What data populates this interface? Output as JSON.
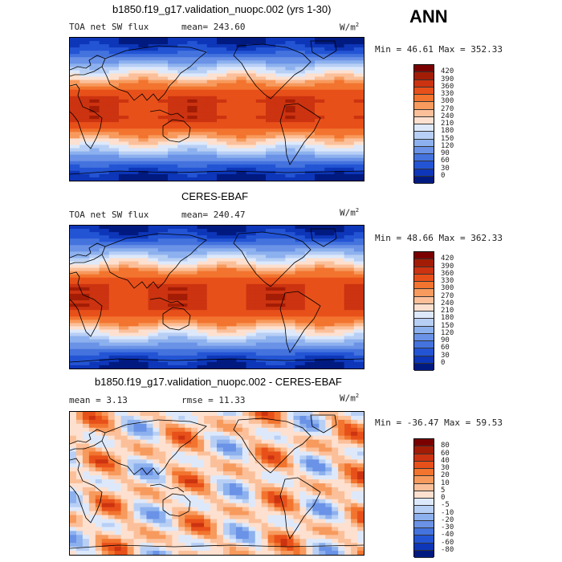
{
  "season": "ANN",
  "panels": [
    {
      "title": "b1850.f19_g17.validation_nuopc.002 (yrs 1-30)",
      "field_label": "TOA net SW flux",
      "stat_label": "mean= 243.60",
      "units": "W/m",
      "units_exp": "2",
      "minmax": "Min =  46.61 Max = 352.33",
      "levels": [
        "420",
        "390",
        "360",
        "330",
        "300",
        "270",
        "240",
        "210",
        "180",
        "150",
        "120",
        "90",
        "60",
        "30",
        "0"
      ],
      "colors": [
        "#7a0000",
        "#a31c05",
        "#cc3310",
        "#e8501a",
        "#f2742e",
        "#f79a5d",
        "#fbc09a",
        "#fde0cf",
        "#dde9fb",
        "#b8cff5",
        "#8db1ee",
        "#6a92e6",
        "#4473de",
        "#2354d4",
        "#0d36b8",
        "#001a80"
      ],
      "kind": "abs"
    },
    {
      "title": "CERES-EBAF",
      "field_label": "TOA net SW flux",
      "stat_label": "mean= 240.47",
      "units": "W/m",
      "units_exp": "2",
      "minmax": "Min =  48.66 Max = 362.33",
      "levels": [
        "420",
        "390",
        "360",
        "330",
        "300",
        "270",
        "240",
        "210",
        "180",
        "150",
        "120",
        "90",
        "60",
        "30",
        "0"
      ],
      "colors": [
        "#7a0000",
        "#a31c05",
        "#cc3310",
        "#e8501a",
        "#f2742e",
        "#f79a5d",
        "#fbc09a",
        "#fde0cf",
        "#dde9fb",
        "#b8cff5",
        "#8db1ee",
        "#6a92e6",
        "#4473de",
        "#2354d4",
        "#0d36b8",
        "#001a80"
      ],
      "kind": "abs"
    },
    {
      "title": "b1850.f19_g17.validation_nuopc.002 - CERES-EBAF",
      "field_label": "mean =   3.13",
      "stat_label": "rmse =  11.33",
      "units": "W/m",
      "units_exp": "2",
      "minmax": "Min = -36.47 Max =  59.53",
      "levels": [
        "80",
        "60",
        "40",
        "30",
        "20",
        "10",
        "5",
        "0",
        "-5",
        "-10",
        "-20",
        "-30",
        "-40",
        "-60",
        "-80"
      ],
      "colors": [
        "#7a0000",
        "#a31c05",
        "#cc3310",
        "#e8501a",
        "#f2742e",
        "#f79a5d",
        "#fbc09a",
        "#fde0cf",
        "#dde9fb",
        "#b8cff5",
        "#8db1ee",
        "#6a92e6",
        "#4473de",
        "#2354d4",
        "#0d36b8",
        "#001a80"
      ],
      "kind": "diff"
    }
  ]
}
